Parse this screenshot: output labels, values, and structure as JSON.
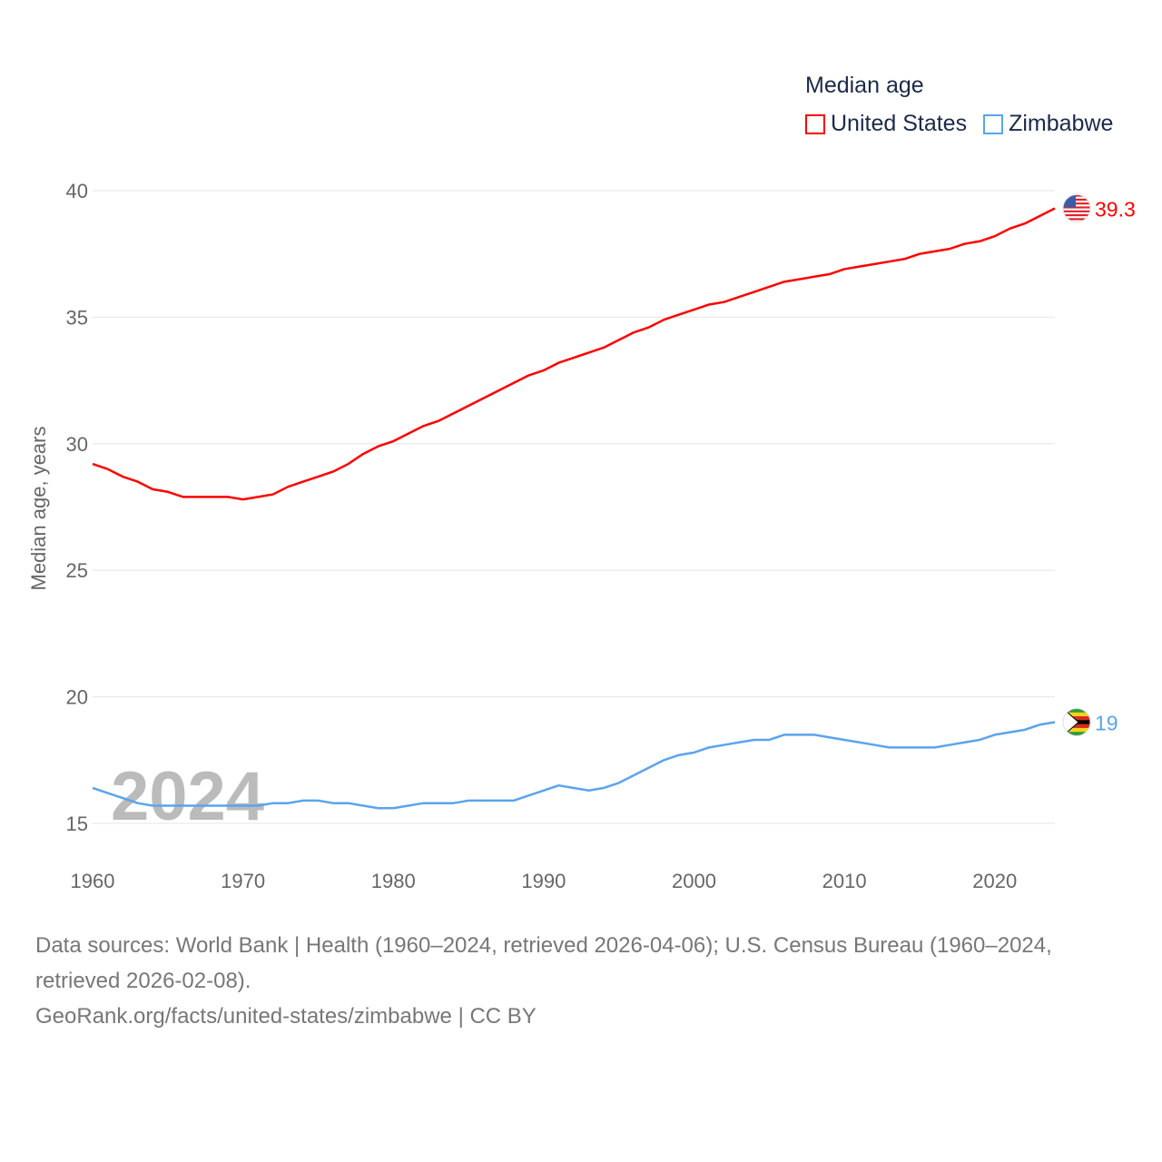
{
  "chart_data": {
    "type": "line",
    "title": "Median age",
    "ylabel": "Median age, years",
    "xlabel": "",
    "xlim": [
      1960,
      2024
    ],
    "ylim": [
      15,
      40
    ],
    "yticks": [
      "15",
      "20",
      "25",
      "30",
      "35",
      "40"
    ],
    "xticks": [
      "1960",
      "1970",
      "1980",
      "1990",
      "2000",
      "2010",
      "2020"
    ],
    "grid": true,
    "legend_position": "top-right",
    "year_watermark": "2024",
    "x": [
      1960,
      1961,
      1962,
      1963,
      1964,
      1965,
      1966,
      1967,
      1968,
      1969,
      1970,
      1971,
      1972,
      1973,
      1974,
      1975,
      1976,
      1977,
      1978,
      1979,
      1980,
      1981,
      1982,
      1983,
      1984,
      1985,
      1986,
      1987,
      1988,
      1989,
      1990,
      1991,
      1992,
      1993,
      1994,
      1995,
      1996,
      1997,
      1998,
      1999,
      2000,
      2001,
      2002,
      2003,
      2004,
      2005,
      2006,
      2007,
      2008,
      2009,
      2010,
      2011,
      2012,
      2013,
      2014,
      2015,
      2016,
      2017,
      2018,
      2019,
      2020,
      2021,
      2022,
      2023,
      2024
    ],
    "series": [
      {
        "name": "United States",
        "color": "#ff0000",
        "end_label": "39.3",
        "values": [
          29.2,
          29.0,
          28.7,
          28.5,
          28.2,
          28.1,
          27.9,
          27.9,
          27.9,
          27.9,
          27.8,
          27.9,
          28.0,
          28.3,
          28.5,
          28.7,
          28.9,
          29.2,
          29.6,
          29.9,
          30.1,
          30.4,
          30.7,
          30.9,
          31.2,
          31.5,
          31.8,
          32.1,
          32.4,
          32.7,
          32.9,
          33.2,
          33.4,
          33.6,
          33.8,
          34.1,
          34.4,
          34.6,
          34.9,
          35.1,
          35.3,
          35.5,
          35.6,
          35.8,
          36.0,
          36.2,
          36.4,
          36.5,
          36.6,
          36.7,
          36.9,
          37.0,
          37.1,
          37.2,
          37.3,
          37.5,
          37.6,
          37.7,
          37.9,
          38.0,
          38.2,
          38.5,
          38.7,
          39.0,
          39.3
        ]
      },
      {
        "name": "Zimbabwe",
        "color": "#5ba4ec",
        "end_label": "19",
        "values": [
          16.4,
          16.2,
          16.0,
          15.8,
          15.7,
          15.7,
          15.7,
          15.7,
          15.7,
          15.7,
          15.7,
          15.7,
          15.8,
          15.8,
          15.9,
          15.9,
          15.8,
          15.8,
          15.7,
          15.6,
          15.6,
          15.7,
          15.8,
          15.8,
          15.8,
          15.9,
          15.9,
          15.9,
          15.9,
          16.1,
          16.3,
          16.5,
          16.4,
          16.3,
          16.4,
          16.6,
          16.9,
          17.2,
          17.5,
          17.7,
          17.8,
          18.0,
          18.1,
          18.2,
          18.3,
          18.3,
          18.5,
          18.5,
          18.5,
          18.4,
          18.3,
          18.2,
          18.1,
          18.0,
          18.0,
          18.0,
          18.0,
          18.1,
          18.2,
          18.3,
          18.5,
          18.6,
          18.7,
          18.9,
          19.0
        ]
      }
    ]
  },
  "legend": {
    "title": "Median age",
    "items": [
      "United States",
      "Zimbabwe"
    ]
  },
  "source": {
    "line1": "Data sources: World Bank | Health (1960–2024, retrieved 2026-04-06); U.S. Census Bureau (1960–2024, retrieved 2026-02-08).",
    "line2": "GeoRank.org/facts/united-states/zimbabwe | CC BY"
  }
}
